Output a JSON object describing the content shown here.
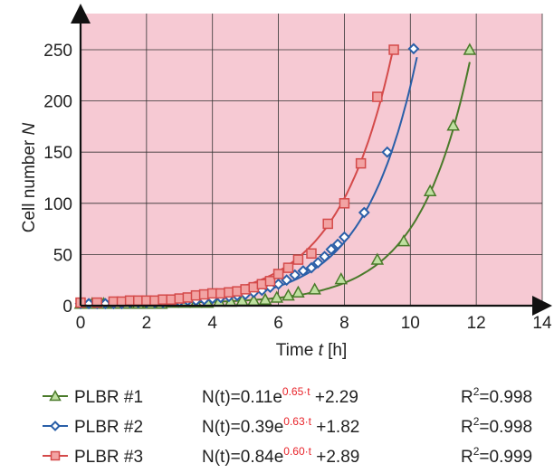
{
  "chart_data": {
    "type": "scatter",
    "xlabel": "Time t [h]",
    "ylabel": "Cell number N",
    "xlim": [
      0,
      14
    ],
    "ylim": [
      0,
      250
    ],
    "xticks": [
      "0",
      "2",
      "4",
      "6",
      "8",
      "10",
      "12",
      "14"
    ],
    "yticks": [
      "0",
      "50",
      "100",
      "150",
      "200",
      "250"
    ],
    "grid": true,
    "background_color": "#f6c9d3",
    "series": [
      {
        "name": "PLBR #1",
        "color": "#4a7a2a",
        "marker": "triangle",
        "equation": "N(t)=0.11e^0.65·t +2.29",
        "eq_prefix": "N(t)=0.11e",
        "eq_exponent": "0.65·t",
        "eq_suffix": " +2.29",
        "r2": "=0.998",
        "fit": {
          "a": 0.11,
          "k": 0.65,
          "c": 2.29,
          "t_end": 11.8
        },
        "x": [
          0,
          0.35,
          0.7,
          1.05,
          1.4,
          1.75,
          2.1,
          2.45,
          2.8,
          3.15,
          3.5,
          3.85,
          4.2,
          4.55,
          4.9,
          5.25,
          5.6,
          5.95,
          6.3,
          6.6,
          7.1,
          7.9,
          9.0,
          9.8,
          10.6,
          11.3,
          11.8
        ],
        "y": [
          2,
          2,
          2,
          2,
          2,
          2,
          2,
          2,
          3,
          3,
          3,
          3,
          4,
          4,
          5,
          5,
          6,
          8,
          10,
          13,
          16,
          26,
          45,
          63,
          112,
          176,
          250
        ]
      },
      {
        "name": "PLBR #2",
        "color": "#2a5fa8",
        "marker": "diamond",
        "equation": "N(t)=0.39e^0.63·t +1.82",
        "eq_prefix": "N(t)=0.39e",
        "eq_exponent": "0.63·t",
        "eq_suffix": " +1.82",
        "r2": "=0.998",
        "fit": {
          "a": 0.39,
          "k": 0.63,
          "c": 1.82,
          "t_end": 10.2
        },
        "x": [
          0,
          0.25,
          0.5,
          0.75,
          1.0,
          1.25,
          1.5,
          1.75,
          2.0,
          2.25,
          2.5,
          2.75,
          3.0,
          3.25,
          3.5,
          3.75,
          4.0,
          4.25,
          4.5,
          4.75,
          5.0,
          5.25,
          5.5,
          5.75,
          6.0,
          6.25,
          6.5,
          6.75,
          7.0,
          7.2,
          7.4,
          7.6,
          7.8,
          8.0,
          8.6,
          9.3,
          10.1
        ],
        "y": [
          2,
          2,
          2,
          2,
          2,
          2,
          3,
          3,
          3,
          3,
          3,
          4,
          4,
          5,
          5,
          6,
          7,
          8,
          9,
          10,
          11,
          13,
          15,
          18,
          21,
          25,
          30,
          34,
          37,
          42,
          48,
          55,
          60,
          67,
          91,
          150,
          251
        ]
      },
      {
        "name": "PLBR #3",
        "color": "#d44a4a",
        "marker": "square",
        "equation": "N(t)=0.84e^0.60·t +2.89",
        "eq_prefix": "N(t)=0.84e",
        "eq_exponent": "0.60·t",
        "eq_suffix": " +2.89",
        "r2": "=0.999",
        "fit": {
          "a": 0.84,
          "k": 0.6,
          "c": 2.89,
          "t_end": 9.5
        },
        "x": [
          0,
          0.5,
          1.0,
          1.25,
          1.5,
          1.75,
          2.0,
          2.25,
          2.5,
          2.75,
          3.0,
          3.25,
          3.5,
          3.75,
          4.0,
          4.25,
          4.5,
          4.75,
          5.0,
          5.25,
          5.5,
          5.75,
          6.0,
          6.3,
          6.6,
          7.0,
          7.5,
          8.0,
          8.5,
          9.0,
          9.5
        ],
        "y": [
          3,
          3,
          4,
          4,
          5,
          5,
          5,
          5,
          6,
          6,
          7,
          8,
          10,
          11,
          12,
          12,
          13,
          14,
          16,
          18,
          21,
          24,
          31,
          37,
          45,
          51,
          80,
          100,
          139,
          204,
          250
        ]
      }
    ]
  }
}
